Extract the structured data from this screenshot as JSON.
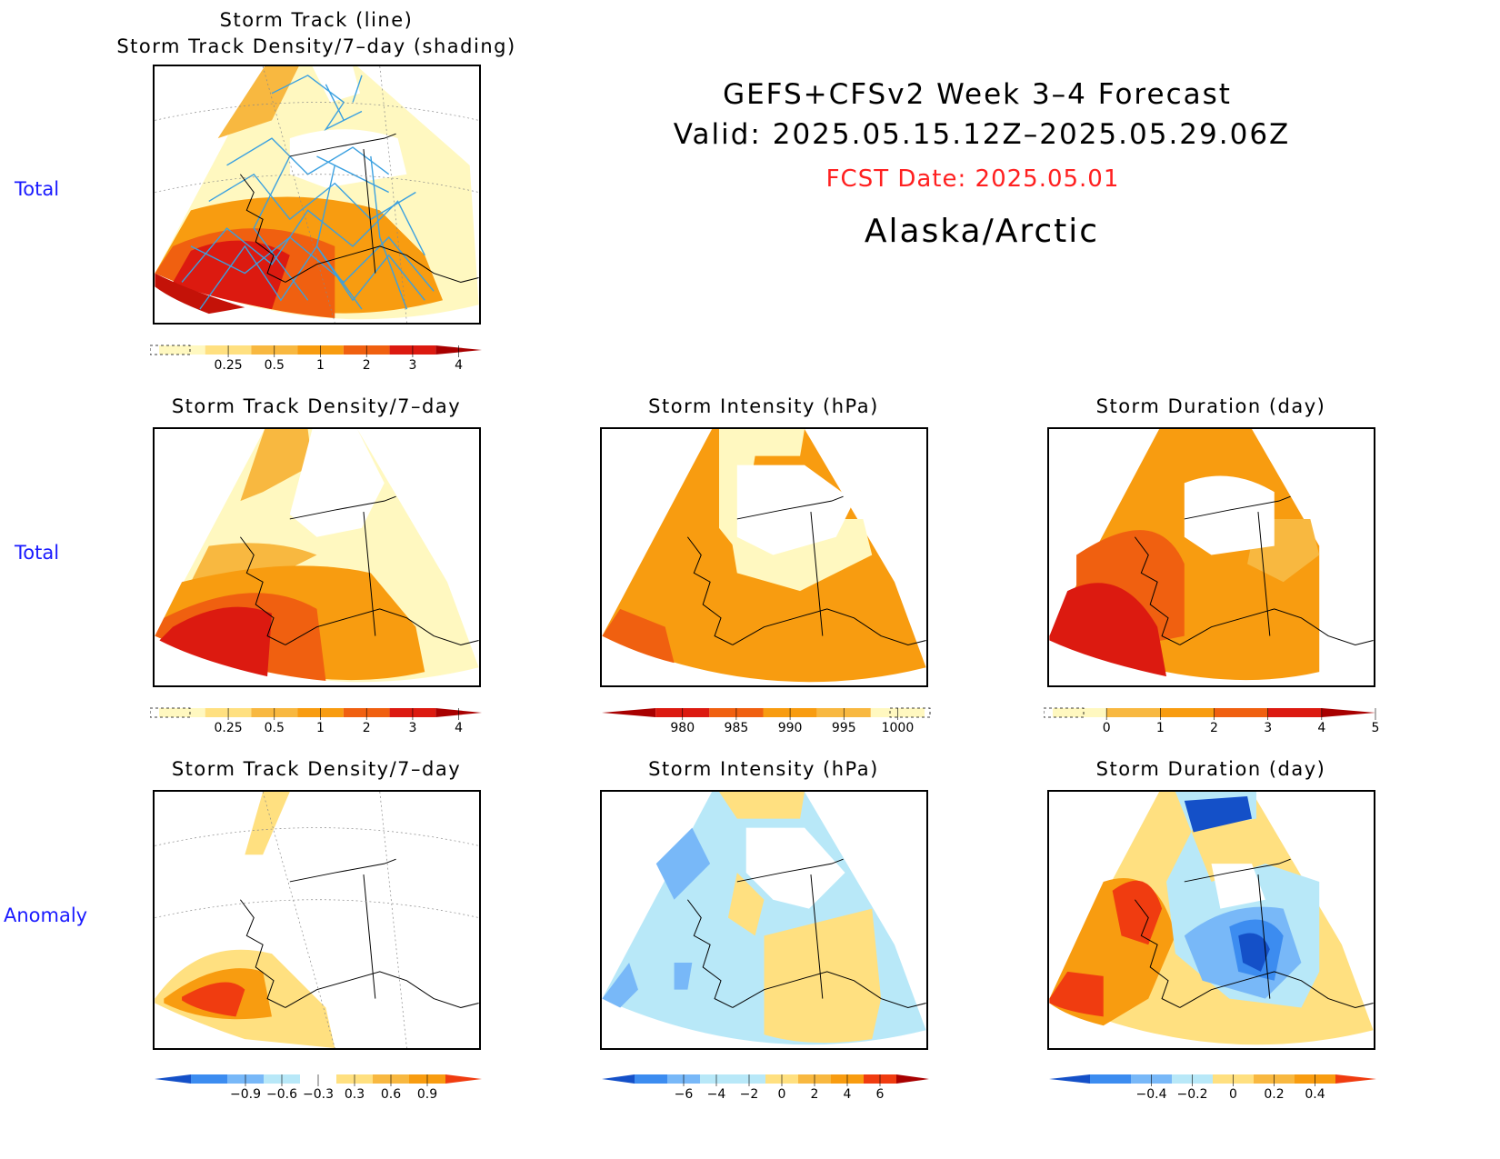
{
  "header": {
    "line1": "GEFS+CFSv2 Week 3–4 Forecast",
    "line2": "Valid: 2025.05.15.12Z–2025.05.29.06Z",
    "fcst_date": "FCST Date: 2025.05.01",
    "region": "Alaska/Arctic",
    "fcst_color": "#ff2020"
  },
  "rows": {
    "r1": "Total",
    "r2": "Total",
    "r3": "Anomaly"
  },
  "panels": {
    "p1": {
      "title1": "Storm Track (line)",
      "title2": "Storm Track Density/7–day (shading)"
    },
    "p2": {
      "title": "Storm Track Density/7–day"
    },
    "p3": {
      "title": "Storm Intensity (hPa)"
    },
    "p4": {
      "title": "Storm Duration (day)"
    },
    "p5": {
      "title": "Storm Track Density/7–day"
    },
    "p6": {
      "title": "Storm Intensity (hPa)"
    },
    "p7": {
      "title": "Storm Duration (day)"
    }
  },
  "colorbars": {
    "density_total": {
      "labels": [
        "0.25",
        "0.5",
        "1",
        "2",
        "3",
        "4"
      ],
      "colors": [
        "#fff8c0",
        "#ffe080",
        "#f8b840",
        "#f89c10",
        "#f06010",
        "#dc1a10",
        "#a80000"
      ]
    },
    "intensity_total": {
      "labels": [
        "980",
        "985",
        "990",
        "995",
        "1000"
      ],
      "colors": [
        "#a80000",
        "#dc1a10",
        "#f06010",
        "#f89c10",
        "#f8b840",
        "#fff8c0"
      ]
    },
    "duration_total": {
      "labels": [
        "0",
        "1",
        "2",
        "3",
        "4",
        "5"
      ],
      "colors": [
        "#fff8c0",
        "#f8b840",
        "#f89c10",
        "#f06010",
        "#dc1a10",
        "#a80000"
      ]
    },
    "density_anom": {
      "labels": [
        "−0.9",
        "−0.6",
        "−0.3",
        "0.3",
        "0.6",
        "0.9"
      ],
      "colors": [
        "#1450c8",
        "#3c8cf0",
        "#78b8f8",
        "#b8e8f8",
        "#ffffff",
        "#ffe080",
        "#f8b840",
        "#f89c10",
        "#f03c10"
      ]
    },
    "intensity_anom": {
      "labels": [
        "−6",
        "−4",
        "−2",
        "0",
        "2",
        "4",
        "6"
      ],
      "colors": [
        "#1450c8",
        "#3c8cf0",
        "#78b8f8",
        "#b8e8f8",
        "#b8e8f8",
        "#ffe080",
        "#f8b840",
        "#f89c10",
        "#f03c10",
        "#a80000"
      ]
    },
    "duration_anom": {
      "labels": [
        "−0.4",
        "−0.2",
        "0",
        "0.2",
        "0.4"
      ],
      "colors": [
        "#1450c8",
        "#3c8cf0",
        "#78b8f8",
        "#b8e8f8",
        "#ffe080",
        "#f8b840",
        "#f89c10",
        "#f03c10"
      ]
    }
  }
}
